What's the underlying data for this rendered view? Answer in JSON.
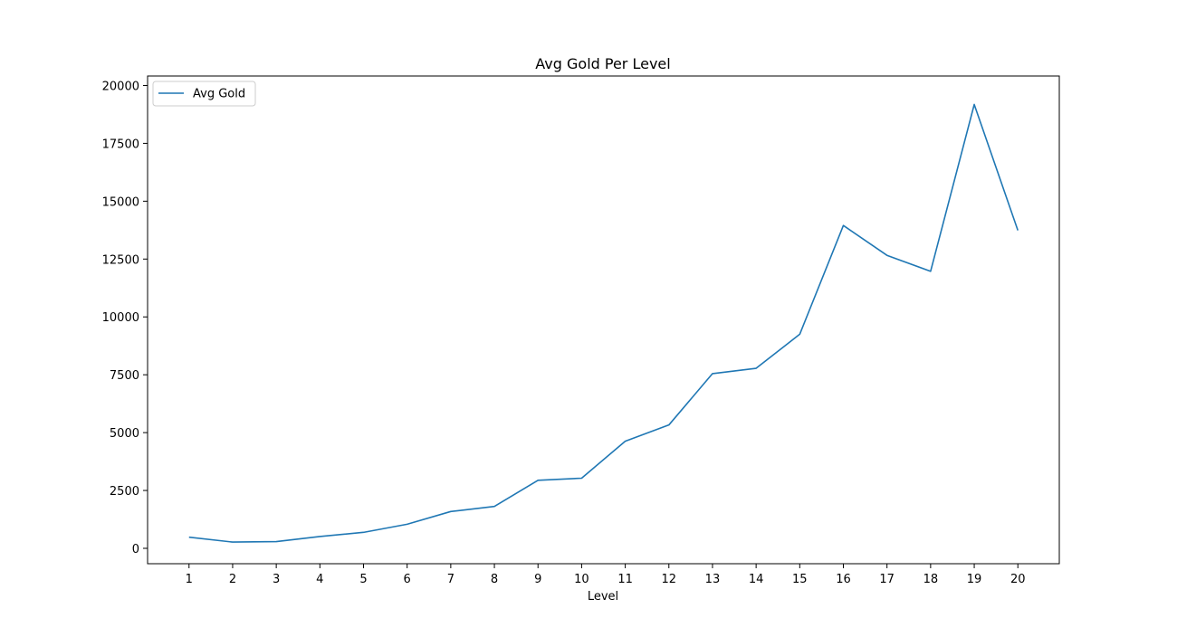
{
  "chart_data": {
    "type": "line",
    "title": "Avg Gold Per Level",
    "xlabel": "Level",
    "ylabel": "",
    "x": [
      1,
      2,
      3,
      4,
      5,
      6,
      7,
      8,
      9,
      10,
      11,
      12,
      13,
      14,
      15,
      16,
      17,
      18,
      19,
      20
    ],
    "series": [
      {
        "name": "Avg Gold",
        "color": "#1f77b4",
        "values": [
          480,
          270,
          290,
          510,
          690,
          1040,
          1590,
          1810,
          2940,
          3030,
          4630,
          5330,
          7550,
          7780,
          9250,
          13950,
          12660,
          11970,
          19180,
          13740
        ]
      }
    ],
    "x_ticks": [
      "1",
      "2",
      "3",
      "4",
      "5",
      "6",
      "7",
      "8",
      "9",
      "10",
      "11",
      "12",
      "13",
      "14",
      "15",
      "16",
      "17",
      "18",
      "19",
      "20"
    ],
    "y_ticks": [
      0,
      2500,
      5000,
      7500,
      10000,
      12500,
      15000,
      17500,
      20000
    ],
    "y_tick_labels": [
      "0",
      "2500",
      "5000",
      "7500",
      "10000",
      "12500",
      "15000",
      "17500",
      "20000"
    ],
    "xlim": [
      0.05,
      20.95
    ],
    "ylim": [
      -665,
      20410
    ],
    "grid": false,
    "legend": "upper left"
  }
}
